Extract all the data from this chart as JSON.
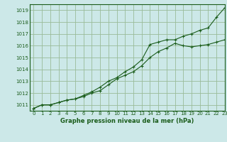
{
  "title": "Graphe pression niveau de la mer (hPa)",
  "bg_color": "#cce8e8",
  "grid_color": "#99bb99",
  "line_color": "#1a5c1a",
  "xlim": [
    -0.5,
    23
  ],
  "ylim": [
    1010.5,
    1019.5
  ],
  "xticks": [
    0,
    1,
    2,
    3,
    4,
    5,
    6,
    7,
    8,
    9,
    10,
    11,
    12,
    13,
    14,
    15,
    16,
    17,
    18,
    19,
    20,
    21,
    22,
    23
  ],
  "yticks": [
    1011,
    1012,
    1013,
    1014,
    1015,
    1016,
    1017,
    1018,
    1019
  ],
  "line1_x": [
    0,
    1,
    2,
    3,
    4,
    5,
    6,
    7,
    8,
    9,
    10,
    11,
    12,
    13,
    14,
    15,
    16,
    17,
    18,
    19,
    20,
    21,
    22,
    23
  ],
  "line1_y": [
    1010.7,
    1011.0,
    1011.0,
    1011.2,
    1011.4,
    1011.5,
    1011.7,
    1012.0,
    1012.2,
    1012.7,
    1013.2,
    1013.5,
    1013.8,
    1014.3,
    1015.0,
    1015.5,
    1015.8,
    1016.2,
    1016.0,
    1015.9,
    1016.0,
    1016.1,
    1016.3,
    1016.5
  ],
  "line2_x": [
    0,
    1,
    2,
    3,
    4,
    5,
    6,
    7,
    8,
    9,
    10,
    11,
    12,
    13,
    14,
    15,
    16,
    17,
    18,
    19,
    20,
    21,
    22,
    23
  ],
  "line2_y": [
    1010.7,
    1011.0,
    1011.0,
    1011.2,
    1011.4,
    1011.5,
    1011.8,
    1012.1,
    1012.5,
    1013.0,
    1013.3,
    1013.8,
    1014.2,
    1014.8,
    1016.1,
    1016.3,
    1016.5,
    1016.5,
    1016.8,
    1017.0,
    1017.3,
    1017.5,
    1018.4,
    1019.2
  ],
  "marker": "+"
}
